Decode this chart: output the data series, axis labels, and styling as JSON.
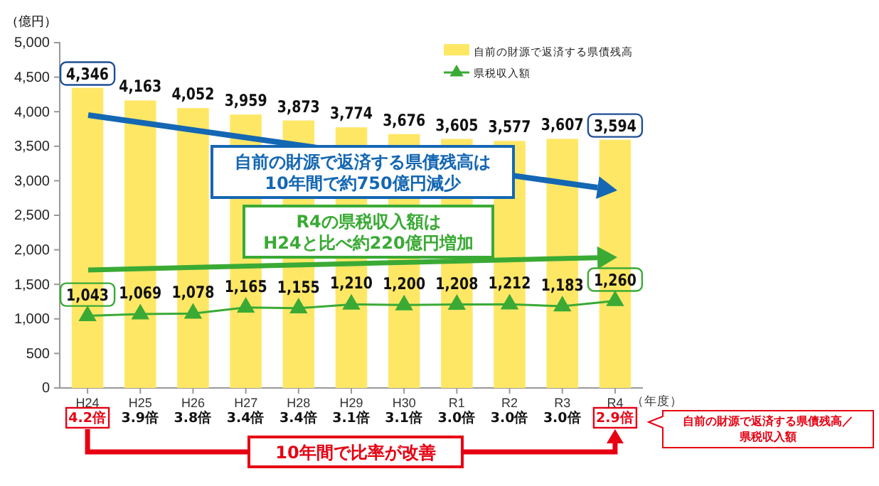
{
  "chart_data": {
    "type": "bar",
    "ylabel": "（億円）",
    "xlabel": "（年度）",
    "categories": [
      "H24",
      "H25",
      "H26",
      "H27",
      "H28",
      "H29",
      "H30",
      "R1",
      "R2",
      "R3",
      "R4"
    ],
    "series": [
      {
        "name": "自前の財源で返済する県債残高",
        "color": "#ffe766",
        "values": [
          4346,
          4163,
          4052,
          3959,
          3873,
          3774,
          3676,
          3605,
          3577,
          3607,
          3594
        ],
        "value_labels": [
          "4,346",
          "4,163",
          "4,052",
          "3,959",
          "3,873",
          "3,774",
          "3,676",
          "3,605",
          "3,577",
          "3,607",
          "3,594"
        ]
      },
      {
        "name": "県税収入額",
        "type": "line",
        "color": "#3aaa35",
        "marker": "triangle",
        "values": [
          1043,
          1069,
          1078,
          1165,
          1155,
          1210,
          1200,
          1208,
          1212,
          1183,
          1260
        ],
        "value_labels": [
          "1,043",
          "1,069",
          "1,078",
          "1,165",
          "1,155",
          "1,210",
          "1,200",
          "1,208",
          "1,212",
          "1,183",
          "1,260"
        ]
      }
    ],
    "ylim": [
      0,
      5000
    ],
    "yticks": [
      {
        "value": 0,
        "label": "0"
      },
      {
        "value": 500,
        "label": "500"
      },
      {
        "value": 1000,
        "label": "1,000"
      },
      {
        "value": 1500,
        "label": "1,500"
      },
      {
        "value": 2000,
        "label": "2,000"
      },
      {
        "value": 2500,
        "label": "2,500"
      },
      {
        "value": 3000,
        "label": "3,000"
      },
      {
        "value": 3500,
        "label": "3,500"
      },
      {
        "value": 4000,
        "label": "4,000"
      },
      {
        "value": 4500,
        "label": "4,500"
      },
      {
        "value": 5000,
        "label": "5,000"
      }
    ],
    "legend": "top right",
    "grid": false,
    "annotations": [
      "自前の財源で返済する県債残高は\n10年間で約750億円減少",
      "R4の県税収入額は\nH24と比べ約220億円増加",
      "4.2倍",
      "3.9倍",
      "3.8倍",
      "3.4倍",
      "3.4倍",
      "3.1倍",
      "3.1倍",
      "3.0倍",
      "3.0倍",
      "3.0倍",
      "2.9倍",
      "自前の財源で返済する県債残高／",
      "県税収入額",
      "10年間で比率が改善"
    ]
  }
}
